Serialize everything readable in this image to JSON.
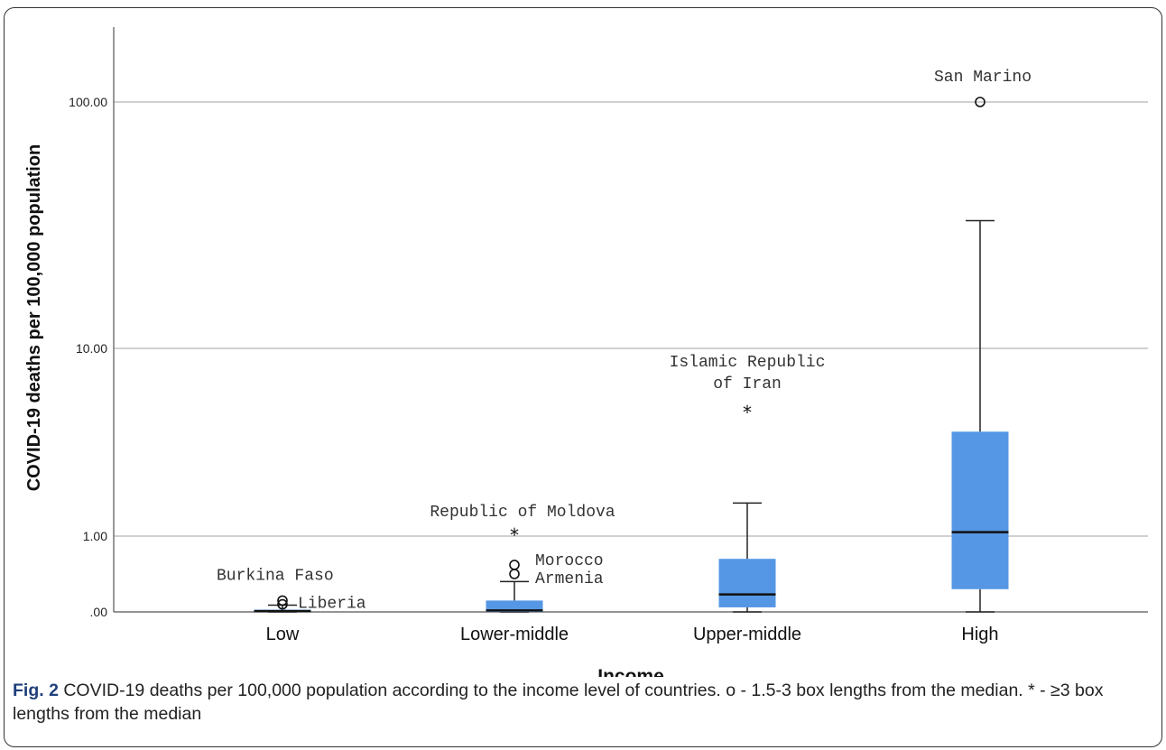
{
  "chart_data": {
    "type": "boxplot",
    "y_scale": "log",
    "xlabel": "Income",
    "ylabel": "COVID-19 deaths per 100,000 population",
    "y_ticks": [
      {
        "value": 0,
        "label": ".00"
      },
      {
        "value": 1,
        "label": "1.00"
      },
      {
        "value": 10,
        "label": "10.00"
      },
      {
        "value": 100,
        "label": "100.00"
      }
    ],
    "grid": true,
    "box_color": "#5597e4",
    "categories": [
      "Low",
      "Lower-middle",
      "Upper-middle",
      "High"
    ],
    "boxes": [
      {
        "category": "Low",
        "min": 0,
        "q1": 0,
        "median": 0.01,
        "q3": 0.03,
        "max": 0.09
      },
      {
        "category": "Lower-middle",
        "min": 0,
        "q1": 0,
        "median": 0.02,
        "q3": 0.15,
        "max": 0.4
      },
      {
        "category": "Upper-middle",
        "min": 0,
        "q1": 0.06,
        "median": 0.23,
        "q3": 0.7,
        "max": 1.5
      },
      {
        "category": "High",
        "min": 0,
        "q1": 0.3,
        "median": 1.05,
        "q3": 3.6,
        "max": 33
      }
    ],
    "outliers": [
      {
        "category": "Low",
        "value": 0.15,
        "type": "circle",
        "label": "Burkina Faso"
      },
      {
        "category": "Low",
        "value": 0.1,
        "type": "circle",
        "label": "Liberia"
      },
      {
        "category": "Lower-middle",
        "value": 1.02,
        "type": "star",
        "label": "Republic of Moldova"
      },
      {
        "category": "Lower-middle",
        "value": 0.62,
        "type": "circle",
        "label": "Morocco"
      },
      {
        "category": "Lower-middle",
        "value": 0.5,
        "type": "circle",
        "label": "Armenia"
      },
      {
        "category": "Upper-middle",
        "value": 4.6,
        "type": "star",
        "label": "Islamic Republic of Iran"
      },
      {
        "category": "High",
        "value": 100,
        "type": "circle",
        "label": "San Marino"
      }
    ]
  },
  "caption": {
    "fig_label": "Fig. 2",
    "text": " COVID-19 deaths per 100,000 population according to the income level of countries. o - 1.5-3 box lengths from the median. * - ≥3 box lengths from the median"
  }
}
